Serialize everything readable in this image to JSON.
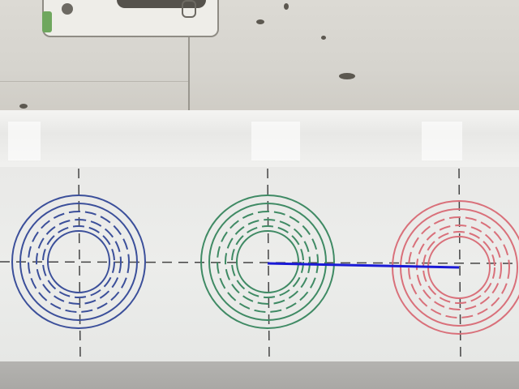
{
  "scene": {
    "description_free": true,
    "colors": {
      "wall": "#d7d5cf",
      "tape": "#f0f0ee",
      "paper": "#e9e9e7",
      "floor": "#aeadaa",
      "crosshair": "#444444",
      "target_left": "#3b4f9a",
      "target_center": "#3f8a64",
      "target_right": "#d9707a",
      "measure_line": "#1a1ad6"
    },
    "targets": [
      {
        "id": "target-left",
        "color_key": "target_left"
      },
      {
        "id": "target-center",
        "color_key": "target_center"
      },
      {
        "id": "target-right",
        "color_key": "target_right"
      }
    ]
  }
}
